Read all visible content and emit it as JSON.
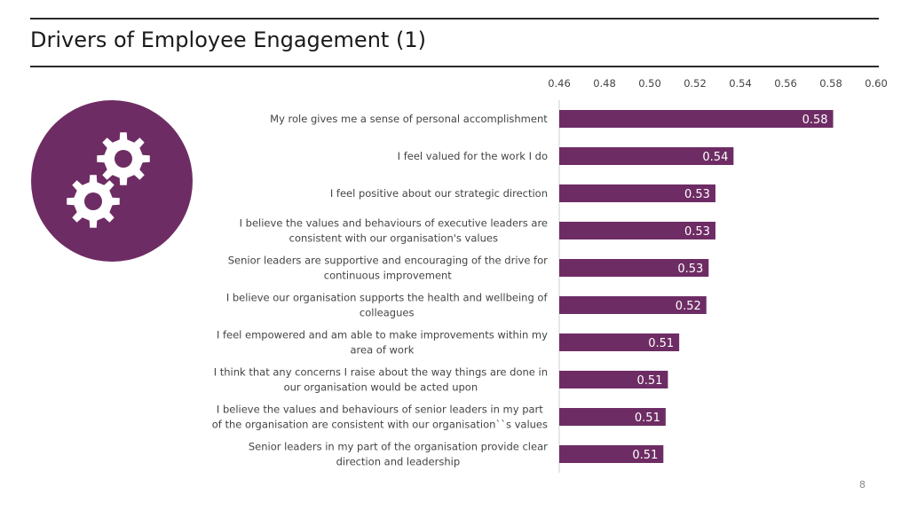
{
  "slide": {
    "title": "Drivers of Employee Engagement (1)",
    "page_number": "8",
    "icon": "gears-icon",
    "accent_color": "#6e2c64"
  },
  "chart_data": {
    "type": "bar",
    "orientation": "horizontal",
    "title": "",
    "xlabel": "",
    "ylabel": "",
    "xlim": [
      0.46,
      0.6
    ],
    "x_ticks": [
      "0.46",
      "0.48",
      "0.50",
      "0.52",
      "0.54",
      "0.56",
      "0.58",
      "0.60"
    ],
    "x_axis_position": "top",
    "grid": false,
    "legend": "none",
    "bar_color": "#6e2c64",
    "label_color": "#ffffff",
    "categories": [
      [
        "My role gives me a sense of personal accomplishment"
      ],
      [
        "I feel valued for the work I do"
      ],
      [
        "I feel positive about our strategic direction"
      ],
      [
        "I believe the values and behaviours of executive leaders are",
        "consistent with our organisation's values"
      ],
      [
        "Senior leaders are supportive and encouraging of the drive for",
        "continuous improvement"
      ],
      [
        "I believe our organisation supports the health and wellbeing of",
        "colleagues"
      ],
      [
        "I feel empowered and am able to make improvements within my",
        "area of work"
      ],
      [
        "I think that any concerns I raise about the way things are done in",
        "our organisation would be acted upon"
      ],
      [
        "I believe the values and behaviours of senior leaders in my part",
        "of the organisation are consistent with our organisation``s values"
      ],
      [
        "Senior leaders in my part of the organisation provide clear",
        "direction and leadership"
      ]
    ],
    "values": [
      0.581,
      0.537,
      0.529,
      0.529,
      0.526,
      0.525,
      0.513,
      0.508,
      0.507,
      0.506
    ],
    "data_labels": [
      "0.58",
      "0.54",
      "0.53",
      "0.53",
      "0.53",
      "0.52",
      "0.51",
      "0.51",
      "0.51",
      "0.51"
    ]
  }
}
